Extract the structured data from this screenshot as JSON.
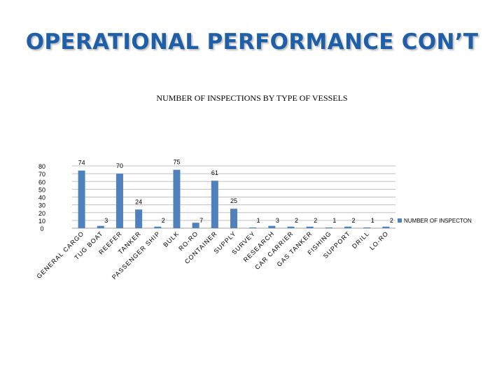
{
  "slide": {
    "title": "OPERATIONAL PERFORMANCE CON’T"
  },
  "colors": {
    "title": "#1f5fa8",
    "bar": "#4f81bd",
    "gridline": "#c0c0c0"
  },
  "chart_data": {
    "type": "bar",
    "title": "NUMBER OF INSPECTIONS BY TYPE OF VESSELS",
    "xlabel": "",
    "ylabel": "",
    "ylim": [
      0,
      80
    ],
    "yticks": [
      "0",
      "10",
      "20",
      "30",
      "40",
      "50",
      "60",
      "70",
      "80"
    ],
    "grid": true,
    "legend_position": "right",
    "categories": [
      "GENERAL CARGO",
      "TUG BOAT",
      "REEFER",
      "TANKER",
      "PASSENGER SHIP",
      "BULK",
      "RO-RO",
      "CONTAINER",
      "SUPPLY",
      "SURVEY",
      "RESEARCH",
      "CAR CARRIER",
      "GAS TANKER",
      "FISHING",
      "SUPPORT",
      "DRILL",
      "LO-RO"
    ],
    "series": [
      {
        "name": "NUMBER OF INSPECTON",
        "values": [
          74,
          3,
          70,
          24,
          2,
          75,
          7,
          61,
          25,
          1,
          3,
          2,
          2,
          1,
          2,
          1,
          2
        ],
        "labels": [
          "74",
          "3",
          "70",
          "24",
          "2",
          "75",
          "7",
          "61",
          "25",
          "1",
          "3",
          "2",
          "2",
          "1",
          "2",
          "1",
          "2"
        ]
      }
    ]
  }
}
